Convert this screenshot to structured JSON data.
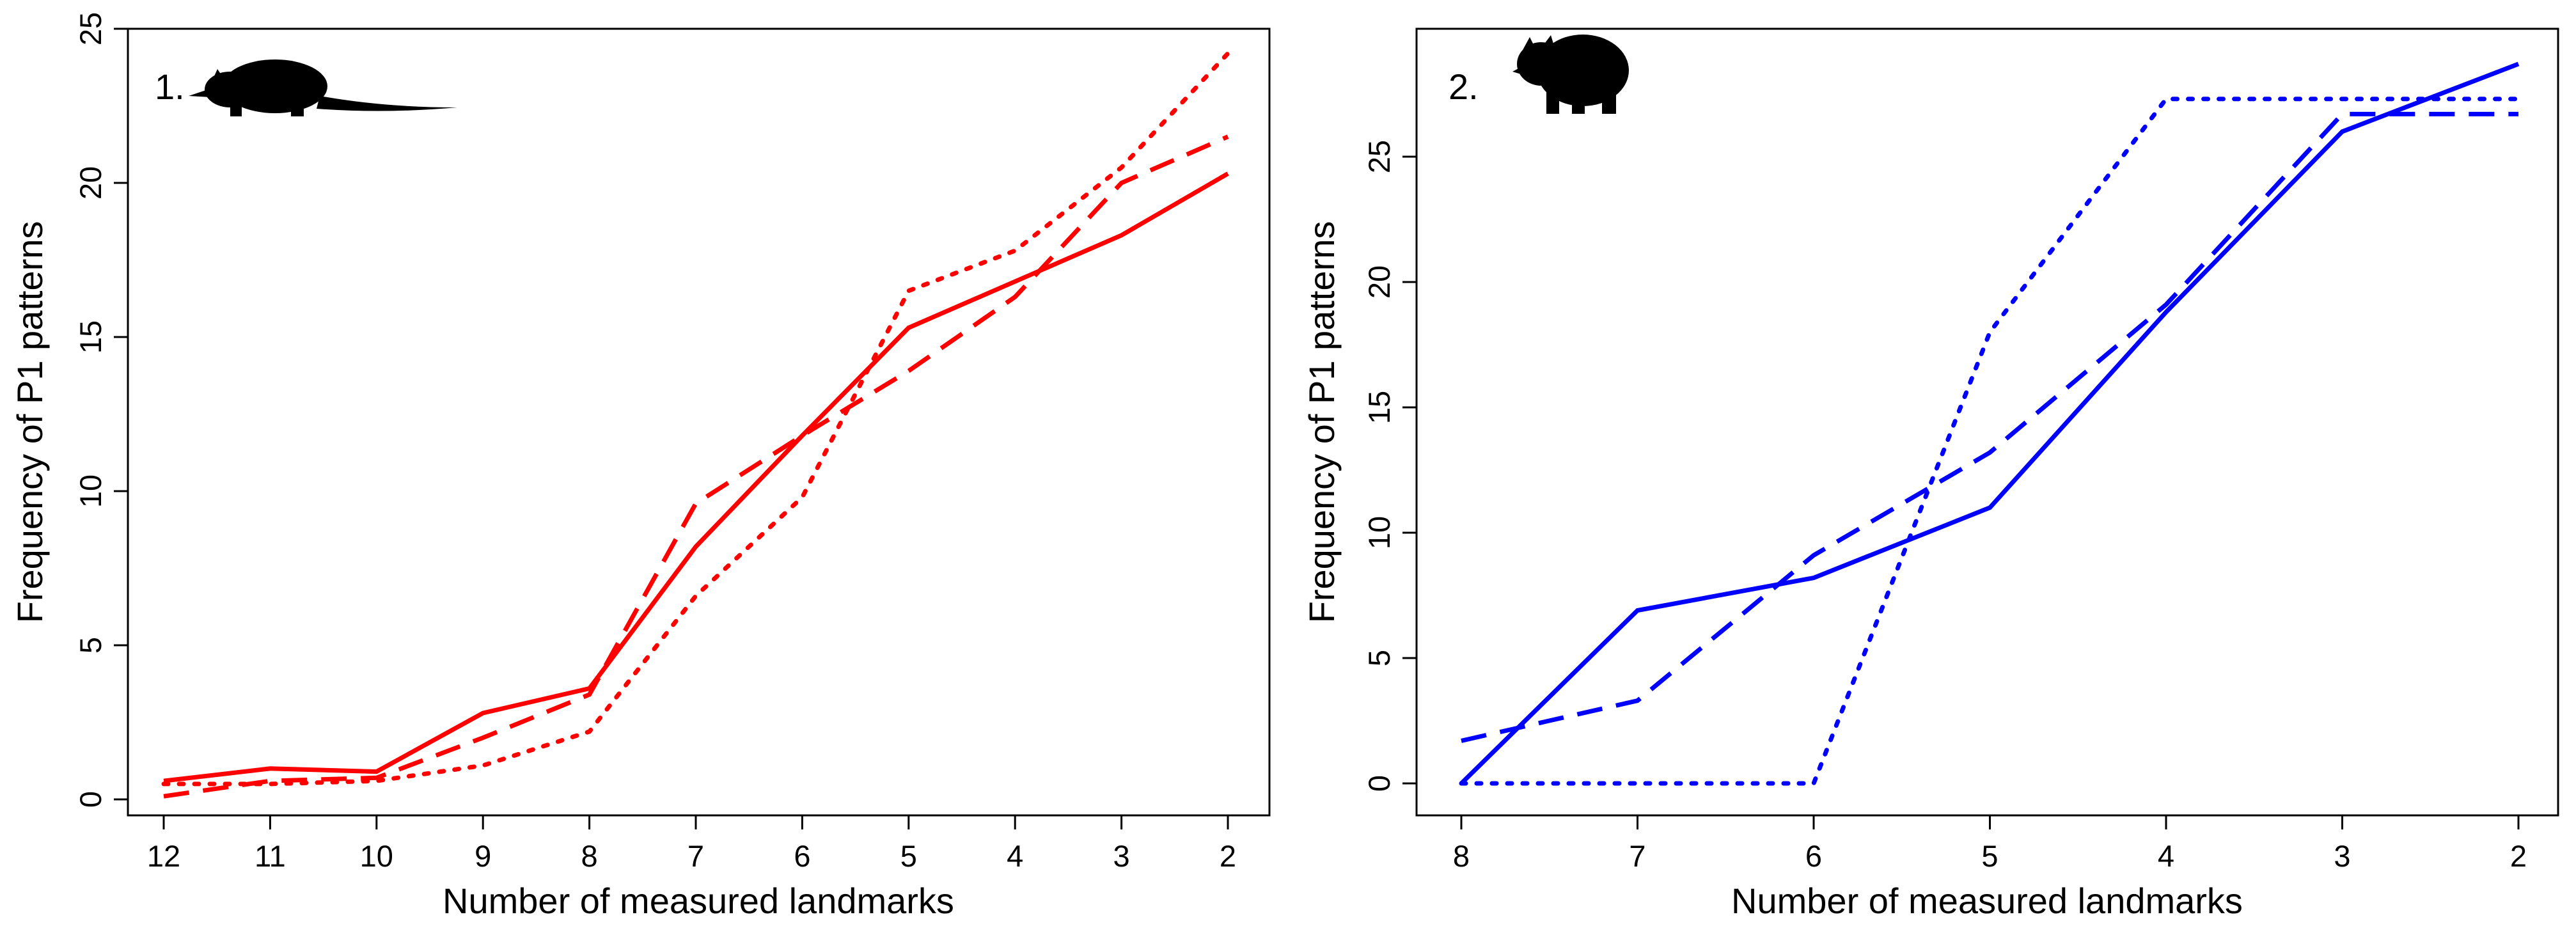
{
  "chart_data": [
    {
      "type": "line",
      "panel_label": "1.",
      "silhouette": "rat-icon",
      "xlabel": "Number of measured landmarks",
      "ylabel": "Frequency of P1 patterns",
      "color": "#ff0000",
      "categories": [
        "12",
        "11",
        "10",
        "9",
        "8",
        "7",
        "6",
        "5",
        "4",
        "3",
        "2"
      ],
      "ylim": [
        0,
        25
      ],
      "yticks": [
        "0",
        "5",
        "10",
        "15",
        "20",
        "25"
      ],
      "series": [
        {
          "name": "solid",
          "style": "solid",
          "values": [
            0.6,
            1.0,
            0.9,
            2.8,
            3.6,
            8.2,
            11.8,
            15.3,
            16.8,
            18.3,
            20.3
          ]
        },
        {
          "name": "dashed",
          "style": "dashed",
          "values": [
            0.1,
            0.6,
            0.7,
            2.0,
            3.4,
            9.6,
            11.8,
            13.9,
            16.3,
            20.0,
            21.5
          ]
        },
        {
          "name": "dotted",
          "style": "dotted",
          "values": [
            0.5,
            0.5,
            0.6,
            1.1,
            2.2,
            6.6,
            9.8,
            16.5,
            17.8,
            20.5,
            24.2
          ]
        }
      ]
    },
    {
      "type": "line",
      "panel_label": "2.",
      "silhouette": "hyrax-icon",
      "xlabel": "Number of measured landmarks",
      "ylabel": "Frequency of P1 patterns",
      "color": "#0000ff",
      "categories": [
        "8",
        "7",
        "6",
        "5",
        "4",
        "3",
        "2"
      ],
      "ylim": [
        0,
        28.7
      ],
      "yticks": [
        "0",
        "5",
        "10",
        "15",
        "20",
        "25"
      ],
      "series": [
        {
          "name": "solid",
          "style": "solid",
          "values": [
            0,
            6.9,
            8.2,
            11.0,
            18.8,
            26.0,
            28.7
          ]
        },
        {
          "name": "dashed",
          "style": "dashed",
          "values": [
            1.7,
            3.3,
            9.1,
            13.2,
            19.1,
            26.7,
            26.7
          ]
        },
        {
          "name": "dotted",
          "style": "dotted",
          "values": [
            0,
            0,
            0,
            18.0,
            27.3,
            27.3,
            27.3
          ]
        }
      ]
    }
  ]
}
